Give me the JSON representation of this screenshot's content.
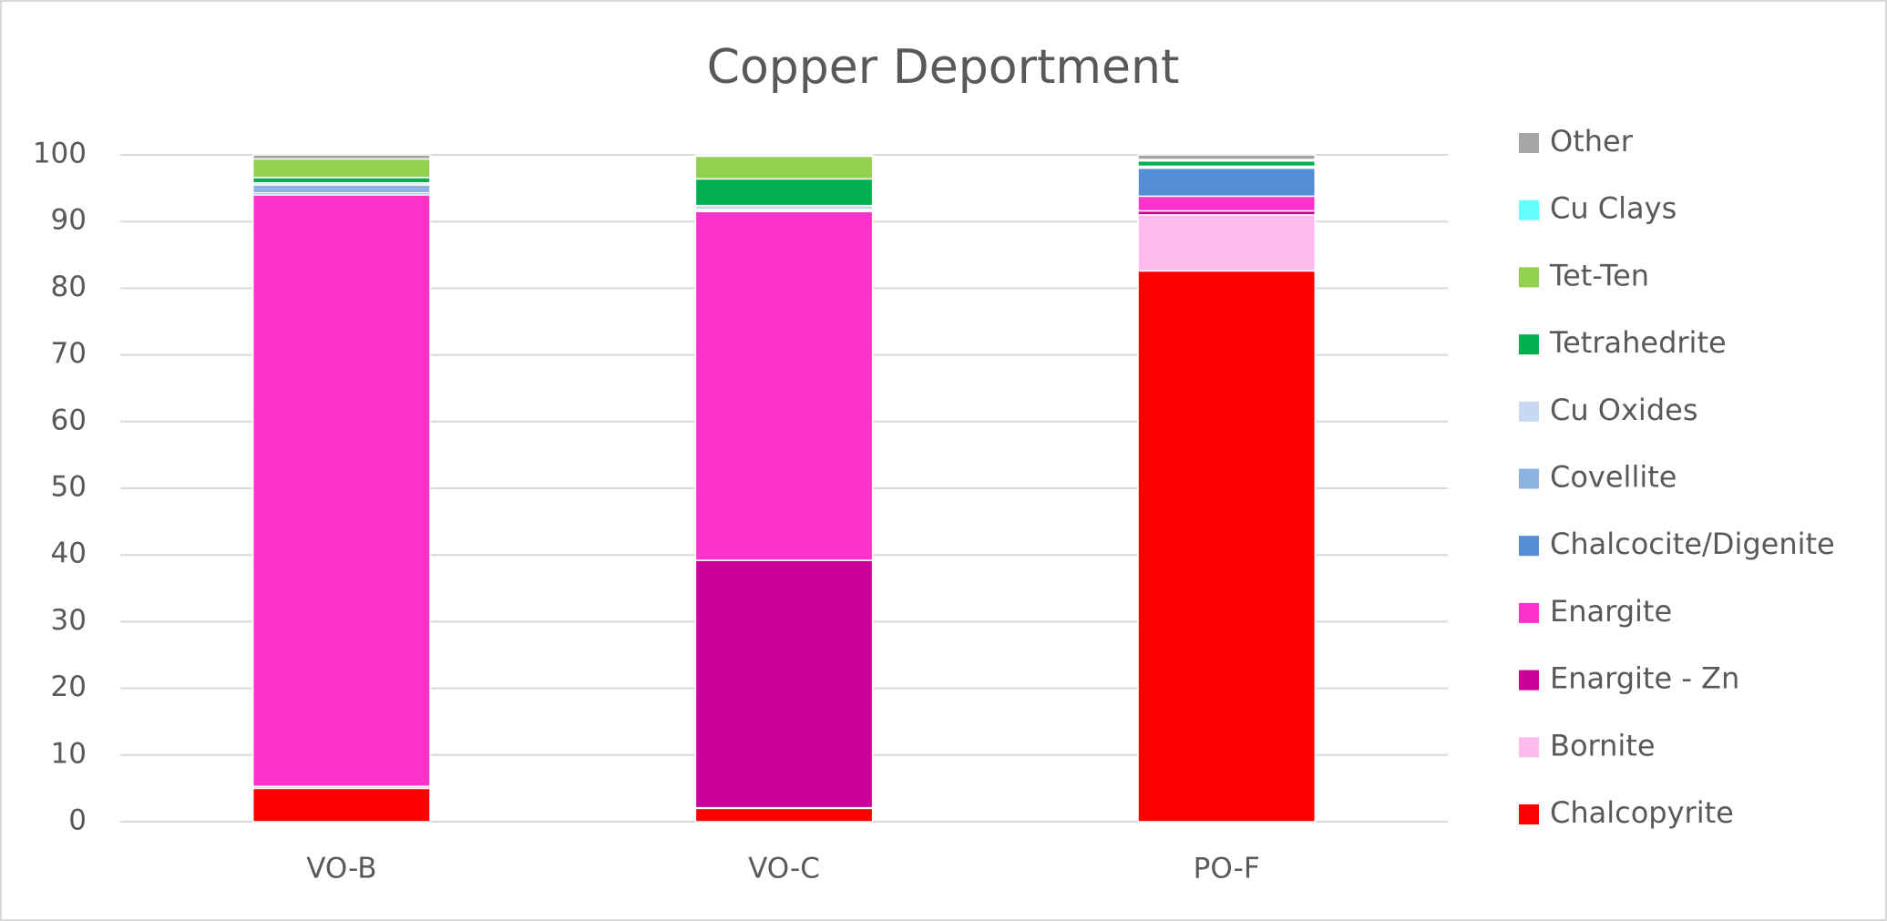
{
  "chart_data": {
    "type": "bar",
    "stacked": true,
    "title": "Copper Deportment",
    "categories": [
      "VO-B",
      "VO-C",
      "PO-F"
    ],
    "series": [
      {
        "name": "Chalcopyrite",
        "color": "#ff0000",
        "values": [
          5.0,
          2.0,
          82.6
        ]
      },
      {
        "name": "Bornite",
        "color": "#ffbbee",
        "values": [
          0.3,
          0.1,
          8.4
        ]
      },
      {
        "name": "Enargite - Zn",
        "color": "#cc0099",
        "values": [
          0,
          37.1,
          0.6
        ]
      },
      {
        "name": "Enargite",
        "color": "#ff33cc",
        "values": [
          88.7,
          52.3,
          2.2
        ]
      },
      {
        "name": "Chalcocite/Digenite",
        "color": "#558ed5",
        "values": [
          0.3,
          0.1,
          4.2
        ]
      },
      {
        "name": "Covellite",
        "color": "#8db3e2",
        "values": [
          1.2,
          0.2,
          0.2
        ]
      },
      {
        "name": "Cu Oxides",
        "color": "#c6d9f1",
        "values": [
          0.3,
          0.6,
          0.1
        ]
      },
      {
        "name": "Tetrahedrite",
        "color": "#00b050",
        "values": [
          0.8,
          4.0,
          0.8
        ]
      },
      {
        "name": "Tet-Ten",
        "color": "#92d050",
        "values": [
          2.8,
          3.4,
          0.2
        ]
      },
      {
        "name": "Cu Clays",
        "color": "#66ffff",
        "values": [
          0,
          0,
          0
        ]
      },
      {
        "name": "Other",
        "color": "#a6a6a6",
        "values": [
          0.6,
          0.2,
          0.7
        ]
      }
    ],
    "ylim": [
      0,
      100
    ],
    "yticks": [
      0,
      10,
      20,
      30,
      40,
      50,
      60,
      70,
      80,
      90,
      100
    ],
    "grid": true,
    "legend": "right"
  }
}
